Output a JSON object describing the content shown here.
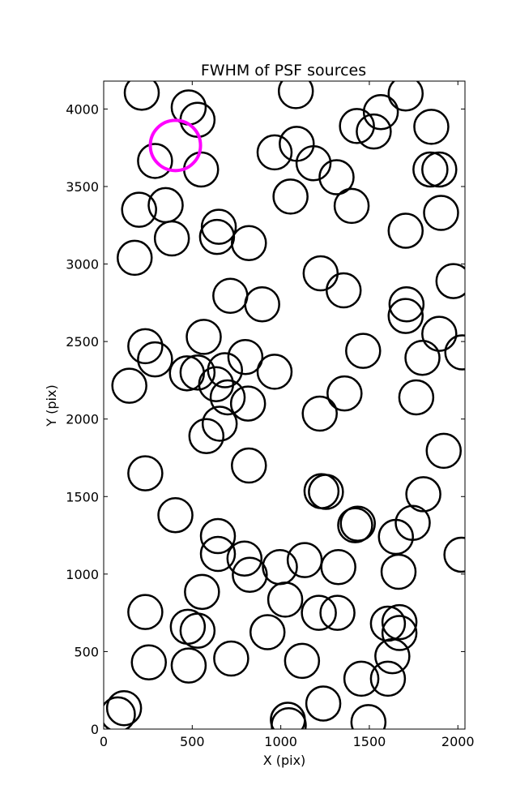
{
  "chart_data": {
    "type": "scatter",
    "title": "FWHM of PSF sources",
    "xlabel": "X (pix)",
    "ylabel": "Y (pix)",
    "xlim": [
      0,
      2040
    ],
    "ylim": [
      0,
      4180
    ],
    "xticks": [
      0,
      500,
      1000,
      1500,
      2000
    ],
    "yticks": [
      0,
      500,
      1000,
      1500,
      2000,
      2500,
      3000,
      3500,
      4000
    ],
    "grid": false,
    "marker": "open circle",
    "highlight_color": "#ff00ff",
    "source_color": "#000000",
    "highlight": {
      "x": 405,
      "y": 3765
    },
    "sources": [
      [
        215,
        4105
      ],
      [
        480,
        4010
      ],
      [
        530,
        3930
      ],
      [
        290,
        3665
      ],
      [
        550,
        3610
      ],
      [
        1085,
        4115
      ],
      [
        965,
        3720
      ],
      [
        1090,
        3775
      ],
      [
        1185,
        3650
      ],
      [
        1315,
        3560
      ],
      [
        1430,
        3890
      ],
      [
        1565,
        3980
      ],
      [
        1525,
        3855
      ],
      [
        1705,
        4100
      ],
      [
        1850,
        3885
      ],
      [
        1845,
        3610
      ],
      [
        1895,
        3610
      ],
      [
        1905,
        3330
      ],
      [
        1705,
        3215
      ],
      [
        1400,
        3375
      ],
      [
        1055,
        3435
      ],
      [
        200,
        3350
      ],
      [
        350,
        3380
      ],
      [
        650,
        3240
      ],
      [
        640,
        3175
      ],
      [
        385,
        3165
      ],
      [
        175,
        3040
      ],
      [
        820,
        3135
      ],
      [
        1225,
        2940
      ],
      [
        1355,
        2830
      ],
      [
        715,
        2795
      ],
      [
        895,
        2740
      ],
      [
        1710,
        2740
      ],
      [
        1705,
        2665
      ],
      [
        1975,
        2890
      ],
      [
        1895,
        2550
      ],
      [
        2025,
        2430
      ],
      [
        1800,
        2395
      ],
      [
        1465,
        2440
      ],
      [
        565,
        2530
      ],
      [
        235,
        2470
      ],
      [
        290,
        2385
      ],
      [
        145,
        2215
      ],
      [
        470,
        2295
      ],
      [
        530,
        2300
      ],
      [
        635,
        2225
      ],
      [
        685,
        2315
      ],
      [
        800,
        2400
      ],
      [
        965,
        2305
      ],
      [
        700,
        2140
      ],
      [
        815,
        2100
      ],
      [
        1360,
        2165
      ],
      [
        1220,
        2035
      ],
      [
        1765,
        2140
      ],
      [
        655,
        1970
      ],
      [
        580,
        1890
      ],
      [
        820,
        1700
      ],
      [
        235,
        1650
      ],
      [
        1920,
        1795
      ],
      [
        1230,
        1535
      ],
      [
        1255,
        1530
      ],
      [
        1420,
        1315
      ],
      [
        1435,
        1325
      ],
      [
        1805,
        1515
      ],
      [
        1745,
        1330
      ],
      [
        405,
        1380
      ],
      [
        645,
        1245
      ],
      [
        645,
        1130
      ],
      [
        795,
        1100
      ],
      [
        825,
        995
      ],
      [
        995,
        1045
      ],
      [
        1135,
        1090
      ],
      [
        1325,
        1045
      ],
      [
        1650,
        1240
      ],
      [
        1665,
        1015
      ],
      [
        2020,
        1125
      ],
      [
        555,
        885
      ],
      [
        235,
        755
      ],
      [
        475,
        660
      ],
      [
        530,
        635
      ],
      [
        1025,
        835
      ],
      [
        1215,
        750
      ],
      [
        1320,
        750
      ],
      [
        1605,
        680
      ],
      [
        1670,
        690
      ],
      [
        1670,
        620
      ],
      [
        925,
        625
      ],
      [
        255,
        430
      ],
      [
        480,
        410
      ],
      [
        720,
        455
      ],
      [
        1120,
        440
      ],
      [
        1630,
        470
      ],
      [
        1455,
        325
      ],
      [
        1605,
        325
      ],
      [
        1240,
        165
      ],
      [
        115,
        135
      ],
      [
        80,
        95
      ],
      [
        1040,
        60
      ],
      [
        1045,
        25
      ],
      [
        1495,
        45
      ]
    ]
  }
}
